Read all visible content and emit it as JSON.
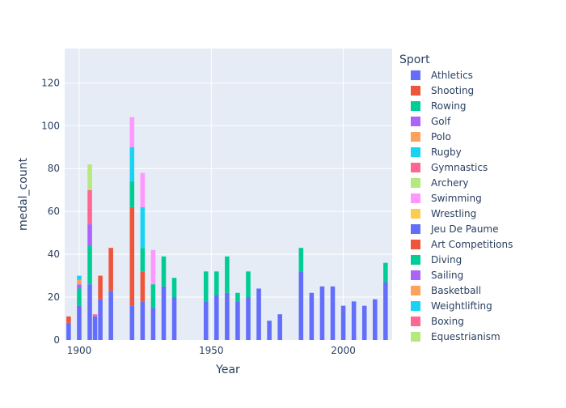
{
  "chart_data": {
    "type": "bar",
    "barmode": "stack",
    "xlabel": "Year",
    "ylabel": "medal_count",
    "xlim": [
      1894.5,
      2018.5
    ],
    "ylim": [
      0,
      136
    ],
    "x_ticks": [
      1900,
      1950,
      2000
    ],
    "y_ticks": [
      0,
      20,
      40,
      60,
      80,
      100,
      120
    ],
    "grid": true,
    "legend_title": "Sport",
    "legend_placement": "right",
    "plot_bgcolor": "#E5ECF6",
    "years": [
      1896,
      1900,
      1904,
      1906,
      1908,
      1912,
      1920,
      1924,
      1928,
      1932,
      1936,
      1948,
      1952,
      1956,
      1960,
      1964,
      1968,
      1972,
      1976,
      1980,
      1984,
      1988,
      1992,
      1996,
      2000,
      2004,
      2008,
      2012,
      2016
    ],
    "series": [
      {
        "name": "Athletics",
        "color": "#636efa",
        "values": [
          8,
          16,
          26,
          11,
          19,
          23,
          16,
          18,
          15,
          25,
          20,
          18,
          21,
          22,
          18,
          20,
          24,
          9,
          12,
          0,
          32,
          22,
          25,
          25,
          16,
          18,
          16,
          19,
          27
        ]
      },
      {
        "name": "Shooting",
        "color": "#EF553B",
        "values": [
          3,
          0,
          0,
          0,
          11,
          20,
          46,
          14,
          0,
          0,
          0,
          0,
          0,
          0,
          0,
          0,
          0,
          0,
          0,
          0,
          0,
          0,
          0,
          0,
          0,
          0,
          0,
          0,
          0
        ]
      },
      {
        "name": "Rowing",
        "color": "#00cc96",
        "values": [
          0,
          8,
          18,
          0,
          0,
          0,
          12,
          11,
          11,
          14,
          9,
          14,
          11,
          17,
          4,
          12,
          0,
          0,
          0,
          0,
          11,
          0,
          0,
          0,
          0,
          0,
          0,
          0,
          9
        ]
      },
      {
        "name": "Golf",
        "color": "#ab63fa",
        "values": [
          0,
          2,
          10,
          0,
          0,
          0,
          0,
          0,
          0,
          0,
          0,
          0,
          0,
          0,
          0,
          0,
          0,
          0,
          0,
          0,
          0,
          0,
          0,
          0,
          0,
          0,
          0,
          0,
          0
        ]
      },
      {
        "name": "Polo",
        "color": "#FFA15A",
        "values": [
          0,
          2,
          0,
          0,
          0,
          0,
          0,
          0,
          0,
          0,
          0,
          0,
          0,
          0,
          0,
          0,
          0,
          0,
          0,
          0,
          0,
          0,
          0,
          0,
          0,
          0,
          0,
          0,
          0
        ]
      },
      {
        "name": "Rugby",
        "color": "#19d3f3",
        "values": [
          0,
          2,
          0,
          0,
          0,
          0,
          16,
          19,
          0,
          0,
          0,
          0,
          0,
          0,
          0,
          0,
          0,
          0,
          0,
          0,
          0,
          0,
          0,
          0,
          0,
          0,
          0,
          0,
          0
        ]
      },
      {
        "name": "Gymnastics",
        "color": "#FF6692",
        "values": [
          0,
          0,
          16,
          1,
          0,
          0,
          0,
          0,
          0,
          0,
          0,
          0,
          0,
          0,
          0,
          0,
          0,
          0,
          0,
          0,
          0,
          0,
          0,
          0,
          0,
          0,
          0,
          0,
          0
        ]
      },
      {
        "name": "Archery",
        "color": "#B6E880",
        "values": [
          0,
          0,
          12,
          0,
          0,
          0,
          0,
          0,
          0,
          0,
          0,
          0,
          0,
          0,
          0,
          0,
          0,
          0,
          0,
          0,
          0,
          0,
          0,
          0,
          0,
          0,
          0,
          0,
          0
        ]
      },
      {
        "name": "Swimming",
        "color": "#FF97FF",
        "values": [
          0,
          0,
          0,
          0,
          0,
          0,
          14,
          16,
          16,
          0,
          0,
          0,
          0,
          0,
          0,
          0,
          0,
          0,
          0,
          0,
          0,
          0,
          0,
          0,
          0,
          0,
          0,
          0,
          0
        ]
      },
      {
        "name": "Wrestling",
        "color": "#FECB52",
        "values": [
          0,
          0,
          0,
          0,
          0,
          0,
          0,
          0,
          0,
          0,
          0,
          0,
          0,
          0,
          0,
          0,
          0,
          0,
          0,
          0,
          0,
          0,
          0,
          0,
          0,
          0,
          0,
          0,
          0
        ]
      },
      {
        "name": "Jeu De Paume",
        "color": "#636efa",
        "values": [
          0,
          0,
          0,
          0,
          0,
          0,
          0,
          0,
          0,
          0,
          0,
          0,
          0,
          0,
          0,
          0,
          0,
          0,
          0,
          0,
          0,
          0,
          0,
          0,
          0,
          0,
          0,
          0,
          0
        ]
      },
      {
        "name": "Art Competitions",
        "color": "#EF553B",
        "values": [
          0,
          0,
          0,
          0,
          0,
          0,
          0,
          0,
          0,
          0,
          0,
          0,
          0,
          0,
          0,
          0,
          0,
          0,
          0,
          0,
          0,
          0,
          0,
          0,
          0,
          0,
          0,
          0,
          0
        ]
      },
      {
        "name": "Diving",
        "color": "#00cc96",
        "values": [
          0,
          0,
          0,
          0,
          0,
          0,
          0,
          0,
          0,
          0,
          0,
          0,
          0,
          0,
          0,
          0,
          0,
          0,
          0,
          0,
          0,
          0,
          0,
          0,
          0,
          0,
          0,
          0,
          0
        ]
      },
      {
        "name": "Sailing",
        "color": "#ab63fa",
        "values": [
          0,
          0,
          0,
          0,
          0,
          0,
          0,
          0,
          0,
          0,
          0,
          0,
          0,
          0,
          0,
          0,
          0,
          0,
          0,
          0,
          0,
          0,
          0,
          0,
          0,
          0,
          0,
          0,
          0
        ]
      },
      {
        "name": "Basketball",
        "color": "#FFA15A",
        "values": [
          0,
          0,
          0,
          0,
          0,
          0,
          0,
          0,
          0,
          0,
          0,
          0,
          0,
          0,
          0,
          0,
          0,
          0,
          0,
          0,
          0,
          0,
          0,
          0,
          0,
          0,
          0,
          0,
          0
        ]
      },
      {
        "name": "Weightlifting",
        "color": "#19d3f3",
        "values": [
          0,
          0,
          0,
          0,
          0,
          0,
          0,
          0,
          0,
          0,
          0,
          0,
          0,
          0,
          0,
          0,
          0,
          0,
          0,
          0,
          0,
          0,
          0,
          0,
          0,
          0,
          0,
          0,
          0
        ]
      },
      {
        "name": "Boxing",
        "color": "#FF6692",
        "values": [
          0,
          0,
          0,
          0,
          0,
          0,
          0,
          0,
          0,
          0,
          0,
          0,
          0,
          0,
          0,
          0,
          0,
          0,
          0,
          0,
          0,
          0,
          0,
          0,
          0,
          0,
          0,
          0,
          0
        ]
      },
      {
        "name": "Equestrianism",
        "color": "#B6E880",
        "values": [
          0,
          0,
          0,
          0,
          0,
          0,
          0,
          0,
          0,
          0,
          0,
          0,
          0,
          0,
          0,
          0,
          0,
          0,
          0,
          0,
          0,
          0,
          0,
          0,
          0,
          0,
          0,
          0,
          0
        ]
      }
    ]
  }
}
